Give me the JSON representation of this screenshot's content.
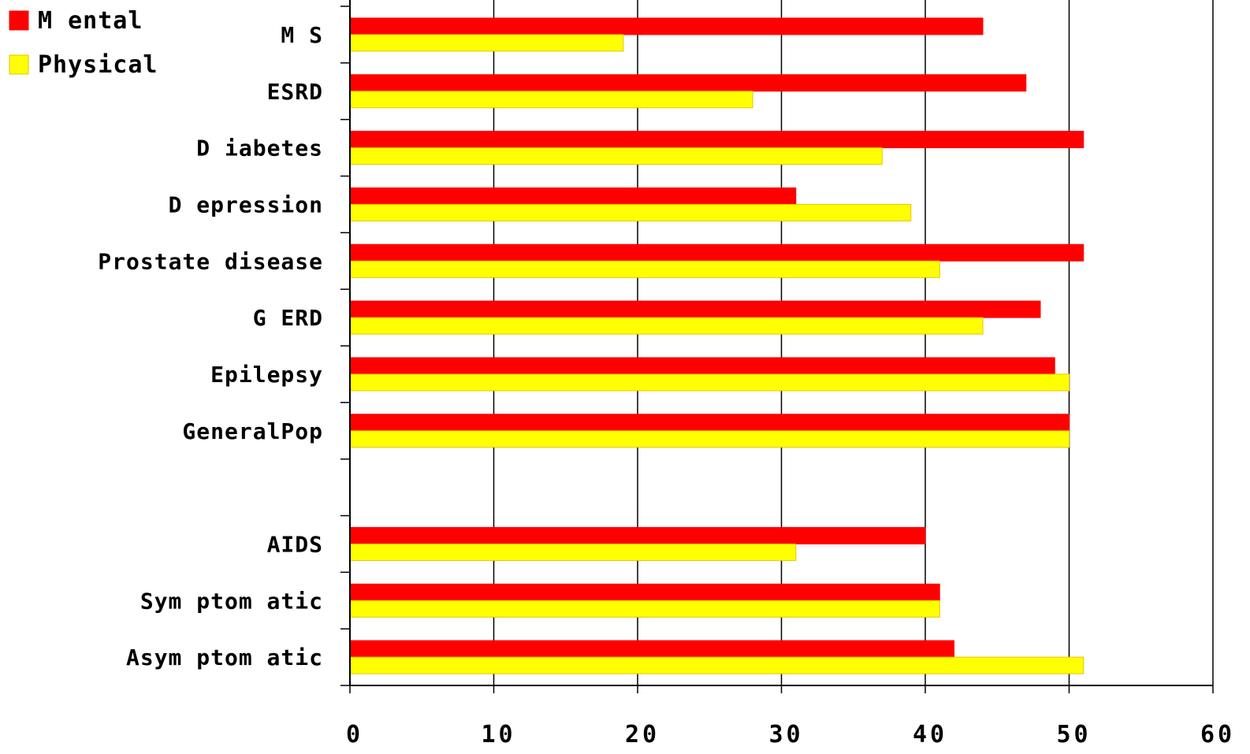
{
  "chart_data": {
    "type": "bar",
    "orientation": "horizontal",
    "categories": [
      "MS",
      "ESRD",
      "Diabetes",
      "Depression",
      "Prostate disease",
      "GERD",
      "Epilepsy",
      "General Pop",
      "",
      "AIDS",
      "Symptomatic",
      "Asymptomatic"
    ],
    "category_labels": [
      "M S",
      "ESRD",
      "D iabetes",
      "D epression",
      "Prostate disease",
      "G ERD",
      "Epilepsy",
      "GeneralPop",
      "",
      "AIDS",
      "Sym ptom atic",
      "Asym ptom atic"
    ],
    "series": [
      {
        "name": "Mental",
        "legend_label": "M ental",
        "color": "#ff0000",
        "values": [
          44,
          47,
          51,
          31,
          51,
          48,
          49,
          50,
          null,
          40,
          41,
          42
        ]
      },
      {
        "name": "Physical",
        "legend_label": "Physical",
        "color": "#ffff00",
        "values": [
          19,
          28,
          37,
          39,
          41,
          44,
          50,
          50,
          null,
          31,
          41,
          51
        ]
      }
    ],
    "xlim": [
      0,
      60
    ],
    "xticks": [
      0,
      10,
      20,
      30,
      40,
      50,
      60
    ],
    "grid": "vertical",
    "legend_position": "top-left",
    "title": "",
    "xlabel": "",
    "ylabel": ""
  }
}
